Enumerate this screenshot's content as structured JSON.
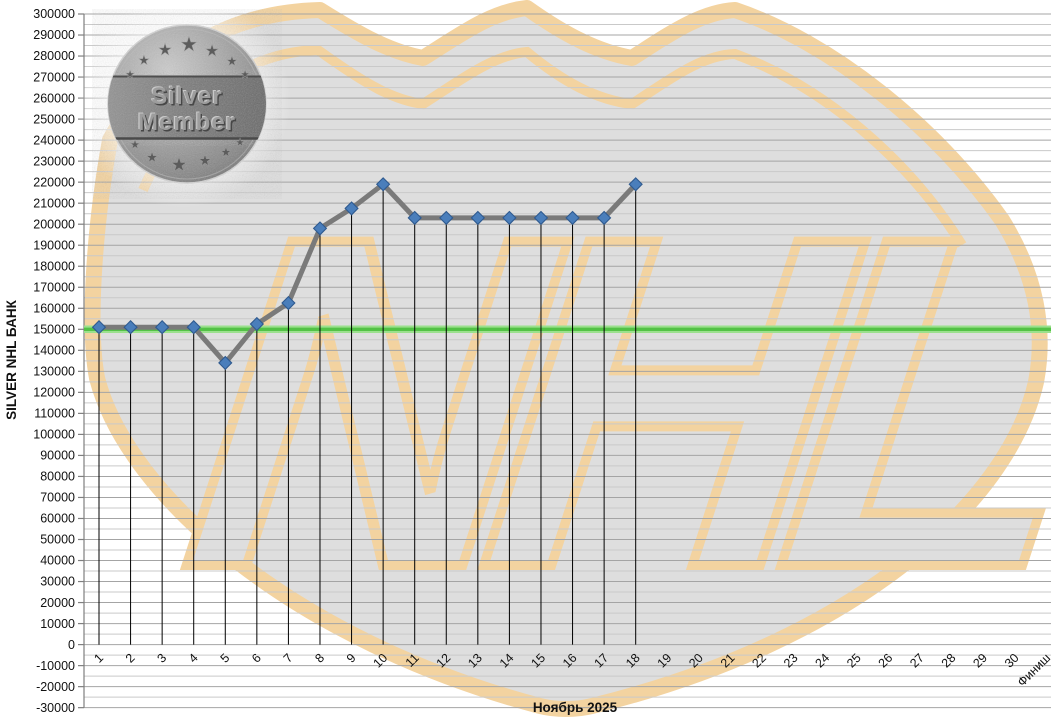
{
  "medal": {
    "line1": "Silver",
    "line2": "Member",
    "top_star_count": 7,
    "bottom_star_count": 6
  },
  "watermark": {
    "text": "NHL",
    "body_color": "#dedede",
    "band_color": "#f3d3a0"
  },
  "chart_data": {
    "type": "line",
    "xlabel": "Ноябрь 2025",
    "ylabel": "SILVER NHL  БАНК",
    "categories": [
      "1",
      "2",
      "3",
      "4",
      "5",
      "6",
      "7",
      "8",
      "9",
      "10",
      "11",
      "12",
      "13",
      "14",
      "15",
      "16",
      "17",
      "18",
      "19",
      "20",
      "21",
      "22",
      "23",
      "24",
      "25",
      "26",
      "27",
      "28",
      "29",
      "30",
      "Финиш"
    ],
    "series": [
      {
        "name": "SILVER NHL БАНК",
        "values": [
          151000,
          151000,
          151000,
          151000,
          134000,
          152500,
          162500,
          198000,
          207500,
          219000,
          203000,
          203000,
          203000,
          203000,
          203000,
          203000,
          203000,
          219000
        ],
        "line_color": "#7a7a7a",
        "marker": "diamond",
        "marker_fill": "#4a7ebb",
        "marker_stroke": "#2f5a8f"
      }
    ],
    "target_line": {
      "value": 150000,
      "color_core": "#53c246",
      "color_halo": "#9be08d"
    },
    "ylim": [
      -30000,
      300000
    ],
    "ytick_step": 10000,
    "ytick_minor_step": 5000,
    "grid": true,
    "drop_lines": true,
    "legend_position": "none",
    "colors": {
      "major_grid": "#a4a4a4",
      "minor_grid": "#c9c9c9",
      "axis": "#7f7f7f",
      "drop_line": "#000000",
      "tick_label": "#111111",
      "title": "#111111"
    }
  }
}
